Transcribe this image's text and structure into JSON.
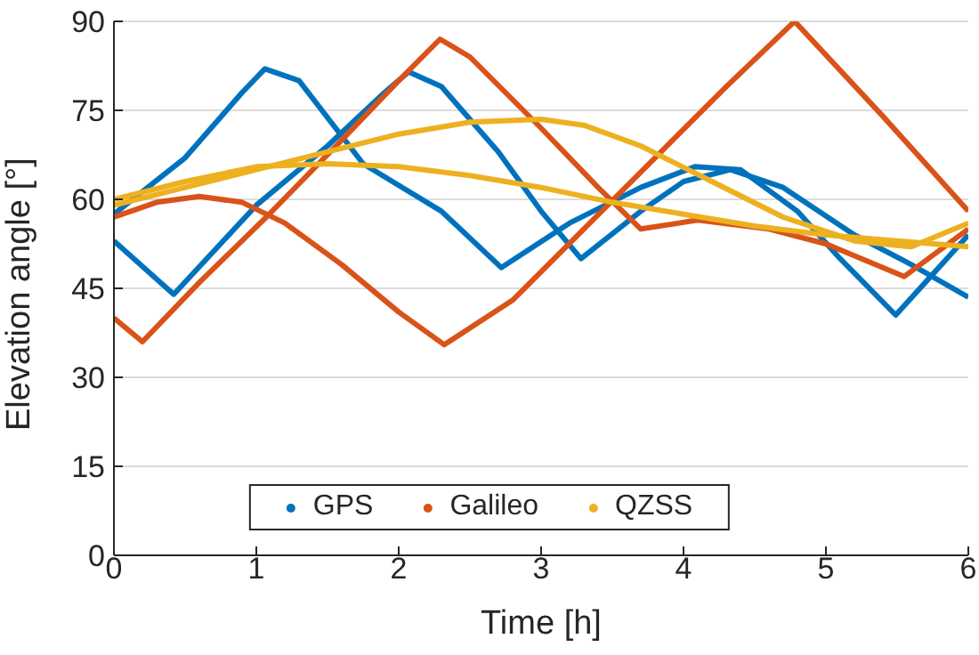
{
  "chart_data": {
    "type": "line",
    "xlabel": "Time [h]",
    "ylabel": "Elevation angle [°]",
    "xlim": [
      0,
      6
    ],
    "xticks": [
      0,
      1,
      2,
      3,
      4,
      5,
      6
    ],
    "ylim": [
      0,
      90
    ],
    "yticks": [
      0,
      15,
      30,
      45,
      60,
      75,
      90
    ],
    "grid": "y",
    "legend": "bottom",
    "marker": "none",
    "line_style": "solid",
    "series": [
      {
        "name": "GPS",
        "color": "#0072bd",
        "x": [
          0,
          0.5,
          0.9,
          1.06,
          1.3,
          1.75,
          2.3,
          2.72,
          3.2,
          3.7,
          4.08,
          4.4,
          4.8,
          5.1,
          5.49,
          6
        ],
        "values": [
          57.5,
          67,
          78,
          82,
          80,
          66,
          58,
          48.5,
          56,
          62,
          65.5,
          65,
          58,
          50,
          40.5,
          54
        ]
      },
      {
        "name": null,
        "color": "#0072bd",
        "x": [
          0,
          0.42,
          1,
          1.5,
          1.9,
          2.07,
          2.3,
          2.7,
          3,
          3.28,
          3.7,
          4,
          4.33,
          4.7,
          5.2,
          5.6,
          6
        ],
        "values": [
          53,
          44,
          59,
          69,
          78,
          81.5,
          79,
          68,
          58,
          50,
          58,
          63,
          65,
          62,
          54,
          49,
          43.5
        ]
      },
      {
        "name": "Galileo",
        "color": "#d95319",
        "x": [
          0,
          0.2,
          0.6,
          1.07,
          1.6,
          2.0,
          2.29,
          2.5,
          3,
          3.4,
          3.7,
          4.1,
          4.6,
          5,
          5.55,
          6
        ],
        "values": [
          40,
          36,
          46,
          57,
          70,
          80,
          87,
          84,
          72,
          62,
          55,
          56.5,
          55,
          52.5,
          47,
          55
        ]
      },
      {
        "name": null,
        "color": "#d95319",
        "x": [
          0,
          0.3,
          0.6,
          0.9,
          1.2,
          1.6,
          2,
          2.32,
          2.8,
          3.3,
          3.8,
          4.3,
          4.78,
          5.4,
          6
        ],
        "values": [
          57,
          59.5,
          60.5,
          59.5,
          56,
          49,
          41,
          35.5,
          43,
          55,
          67,
          79,
          90,
          74,
          58
        ]
      },
      {
        "name": "QZSS",
        "color": "#edb120",
        "x": [
          0,
          0.5,
          1,
          1.5,
          2,
          2.5,
          3,
          3.3,
          3.7,
          4.2,
          4.7,
          5.2,
          5.6,
          6
        ],
        "values": [
          59,
          62,
          65,
          68,
          71,
          73,
          73.5,
          72.5,
          69,
          63,
          57,
          53,
          52,
          56
        ]
      },
      {
        "name": null,
        "color": "#edb120",
        "x": [
          0,
          0.5,
          1,
          1.5,
          2,
          2.5,
          3,
          3.5,
          4,
          4.5,
          5,
          5.5,
          6
        ],
        "values": [
          60,
          63,
          65.5,
          66,
          65.5,
          64,
          62,
          59.5,
          57.5,
          55.5,
          54,
          53,
          52
        ]
      }
    ]
  }
}
